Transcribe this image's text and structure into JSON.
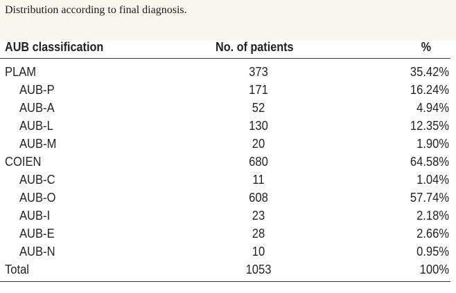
{
  "caption": "Distribution according to final diagnosis.",
  "table": {
    "headers": {
      "classification": "AUB classification",
      "patients": "No. of patients",
      "percent": "%"
    },
    "rows": [
      {
        "label": "PLAM",
        "patients": "373",
        "percent": "35.42%",
        "indent": false
      },
      {
        "label": "AUB-P",
        "patients": "171",
        "percent": "16.24%",
        "indent": true
      },
      {
        "label": "AUB-A",
        "patients": "52",
        "percent": "4.94%",
        "indent": true
      },
      {
        "label": "AUB-L",
        "patients": "130",
        "percent": "12.35%",
        "indent": true
      },
      {
        "label": "AUB-M",
        "patients": "20",
        "percent": "1.90%",
        "indent": true
      },
      {
        "label": "COIEN",
        "patients": "680",
        "percent": "64.58%",
        "indent": false
      },
      {
        "label": "AUB-C",
        "patients": "11",
        "percent": "1.04%",
        "indent": true
      },
      {
        "label": "AUB-O",
        "patients": "608",
        "percent": "57.74%",
        "indent": true
      },
      {
        "label": "AUB-I",
        "patients": "23",
        "percent": "2.18%",
        "indent": true
      },
      {
        "label": "AUB-E",
        "patients": "28",
        "percent": "2.66%",
        "indent": true
      },
      {
        "label": "AUB-N",
        "patients": "10",
        "percent": "0.95%",
        "indent": true
      },
      {
        "label": "Total",
        "patients": "1053",
        "percent": "100%",
        "indent": false
      }
    ]
  }
}
